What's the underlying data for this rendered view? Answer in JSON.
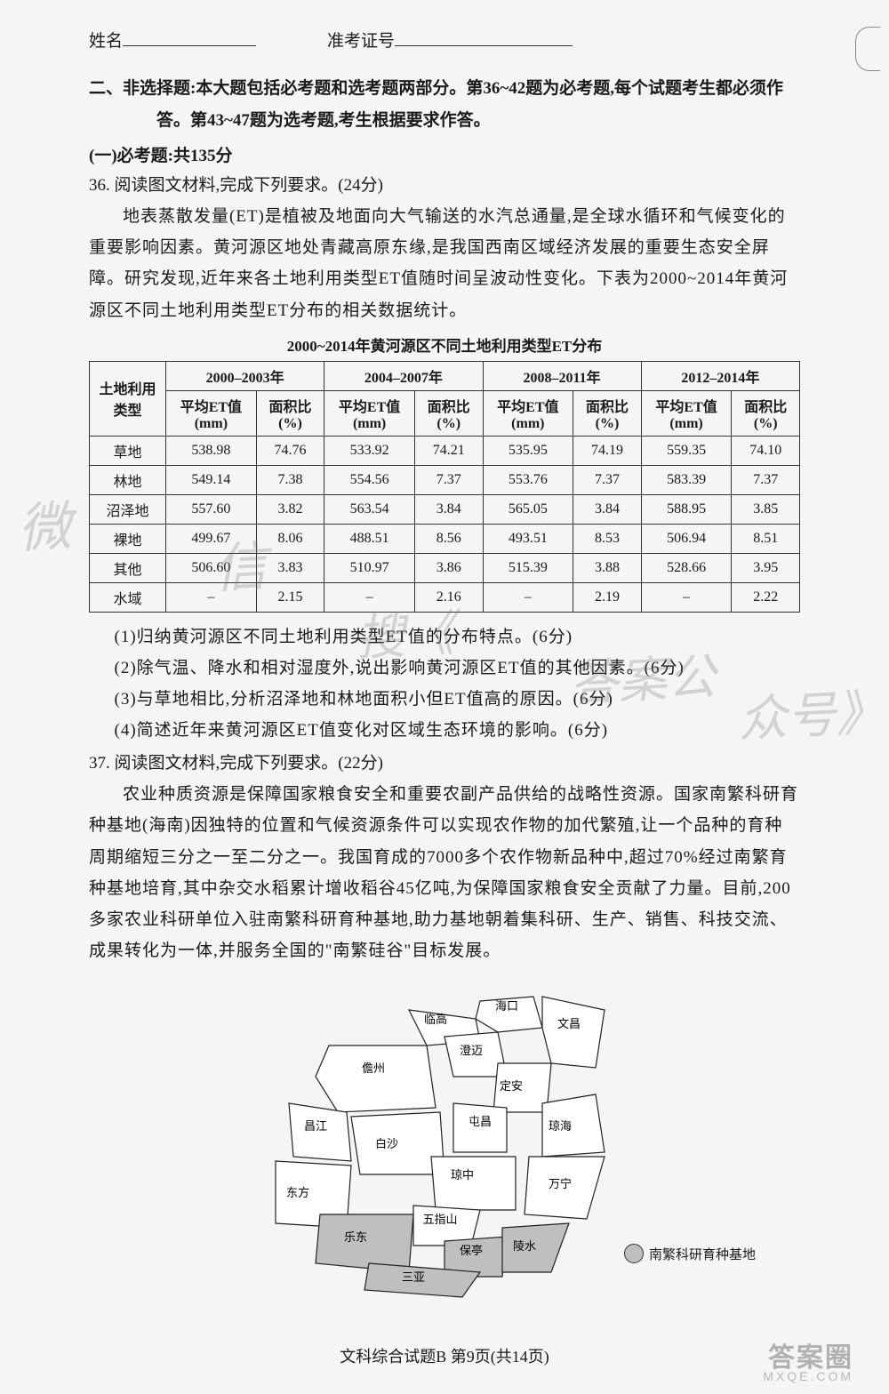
{
  "header": {
    "name_label": "姓名",
    "exam_id_label": "准考证号"
  },
  "section2": {
    "heading": "二、非选择题:本大题包括必考题和选考题两部分。第36~42题为必考题,每个试题考生都必须作答。第43~47题为选考题,考生根据要求作答。",
    "required_heading": "(一)必考题:共135分"
  },
  "q36": {
    "number_line": "36. 阅读图文材料,完成下列要求。(24分)",
    "paragraph": "地表蒸散发量(ET)是植被及地面向大气输送的水汽总通量,是全球水循环和气候变化的重要影响因素。黄河源区地处青藏高原东缘,是我国西南区域经济发展的重要生态安全屏障。研究发现,近年来各土地利用类型ET值随时间呈波动性变化。下表为2000~2014年黄河源区不同土地利用类型ET分布的相关数据统计。",
    "table_title": "2000~2014年黄河源区不同土地利用类型ET分布",
    "table": {
      "row_header_label": "土地利用类型",
      "periods": [
        "2000–2003年",
        "2004–2007年",
        "2008–2011年",
        "2012–2014年"
      ],
      "sub_cols": [
        "平均ET值(mm)",
        "面积比(%)"
      ],
      "rows": [
        {
          "name": "草地",
          "vals": [
            "538.98",
            "74.76",
            "533.92",
            "74.21",
            "535.95",
            "74.19",
            "559.35",
            "74.10"
          ]
        },
        {
          "name": "林地",
          "vals": [
            "549.14",
            "7.38",
            "554.56",
            "7.37",
            "553.76",
            "7.37",
            "583.39",
            "7.37"
          ]
        },
        {
          "name": "沼泽地",
          "vals": [
            "557.60",
            "3.82",
            "563.54",
            "3.84",
            "565.05",
            "3.84",
            "588.95",
            "3.85"
          ]
        },
        {
          "name": "裸地",
          "vals": [
            "499.67",
            "8.06",
            "488.51",
            "8.56",
            "493.51",
            "8.53",
            "506.94",
            "8.51"
          ]
        },
        {
          "name": "其他",
          "vals": [
            "506.60",
            "3.83",
            "510.97",
            "3.86",
            "515.39",
            "3.88",
            "528.66",
            "3.95"
          ]
        },
        {
          "name": "水域",
          "vals": [
            "–",
            "2.15",
            "–",
            "2.16",
            "–",
            "2.19",
            "–",
            "2.22"
          ]
        }
      ]
    },
    "subs": [
      "(1)归纳黄河源区不同土地利用类型ET值的分布特点。(6分)",
      "(2)除气温、降水和相对湿度外,说出影响黄河源区ET值的其他因素。(6分)",
      "(3)与草地相比,分析沼泽地和林地面积小但ET值高的原因。(6分)",
      "(4)简述近年来黄河源区ET值变化对区域生态环境的影响。(6分)"
    ]
  },
  "q37": {
    "number_line": "37. 阅读图文材料,完成下列要求。(22分)",
    "paragraph": "农业种质资源是保障国家粮食安全和重要农副产品供给的战略性资源。国家南繁科研育种基地(海南)因独特的位置和气候资源条件可以实现农作物的加代繁殖,让一个品种的育种周期缩短三分之一至二分之一。我国育成的7000多个农作物新品种中,超过70%经过南繁育种基地培育,其中杂交水稻累计增收稻谷45亿吨,为保障国家粮食安全贡献了力量。目前,200多家农业科研单位入驻南繁科研育种基地,助力基地朝着集科研、生产、销售、科技交流、成果转化为一体,并服务全国的\"南繁硅谷\"目标发展。"
  },
  "map": {
    "legend_label": "南繁科研育种基地",
    "regions": {
      "haikou": "海口",
      "wenchang": "文昌",
      "lingao": "临高",
      "chengmai": "澄迈",
      "danzhou": "儋州",
      "dingan": "定安",
      "changjiang": "昌江",
      "tunchang": "屯昌",
      "baisha": "白沙",
      "qiongzhong": "琼中",
      "qionghai": "琼海",
      "wanning": "万宁",
      "dongfang": "东方",
      "wuzhishan": "五指山",
      "baoting": "保亭",
      "lingshui": "陵水",
      "ledong": "乐东",
      "sanya": "三亚"
    },
    "shaded_fill": "#bfbfbf",
    "unshaded_fill": "#ffffff",
    "stroke": "#222222"
  },
  "footer": "文科综合试题B  第9页(共14页)",
  "watermarks": {
    "wm1": "微",
    "wm2": "信",
    "wm3": "搜《",
    "wm4": "答案公",
    "wm5": "众号》",
    "bottom1": "答案圈",
    "bottom2": "MXQE.COM"
  },
  "style": {
    "page_bg": "#f5f5f5",
    "text_color": "#1a1a1a",
    "border_color": "#333333",
    "base_fontsize": 19
  }
}
